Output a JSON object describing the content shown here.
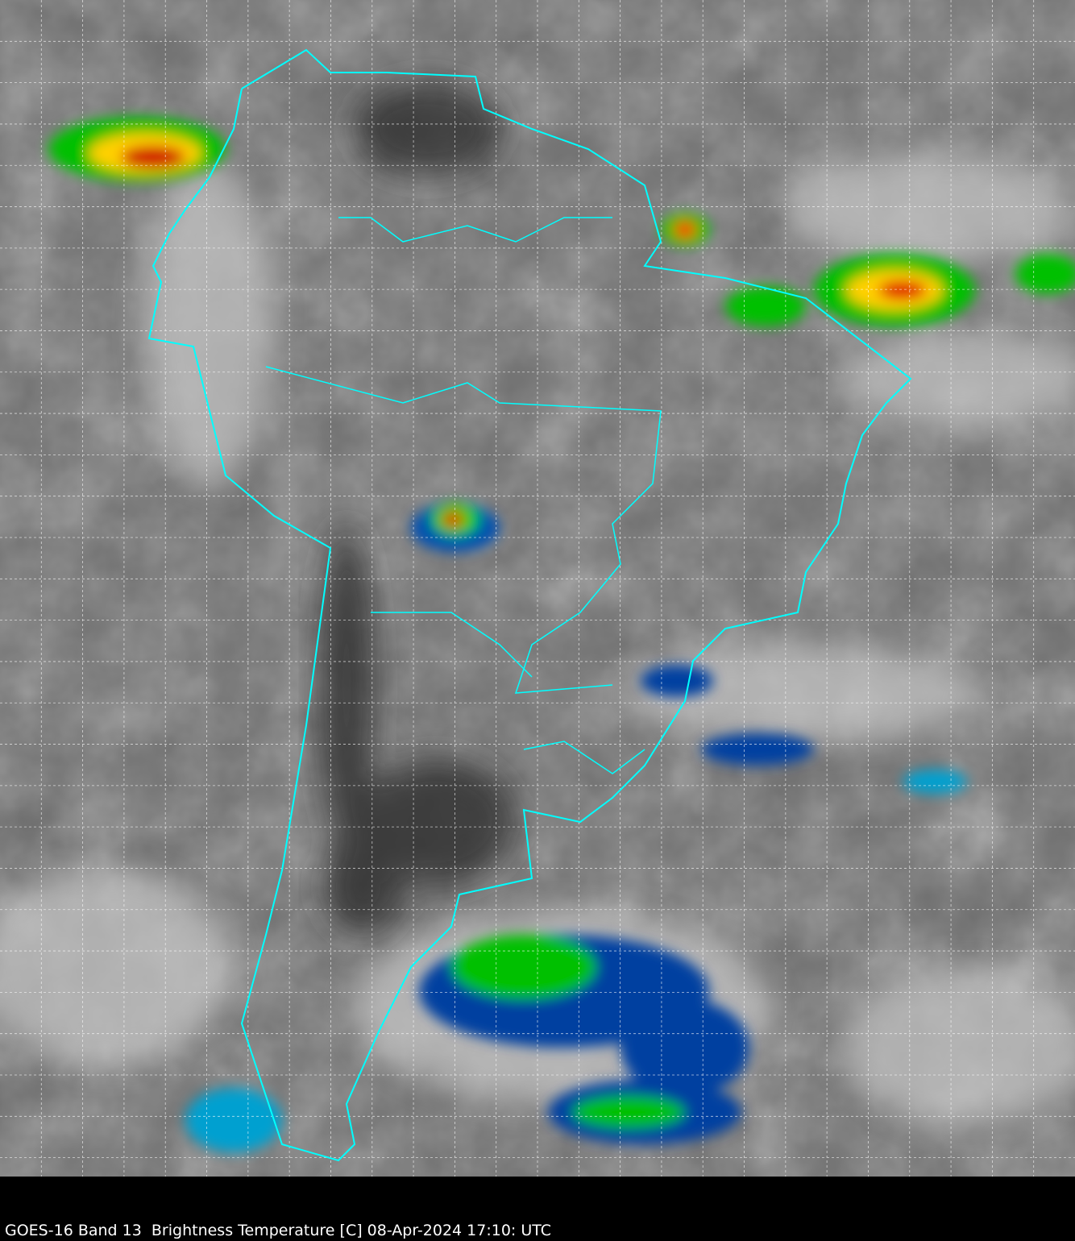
{
  "caption": "GOES-16 Band 13  Brightness Temperature [C] 08-Apr-2024 17:10: UTC",
  "map": {
    "imagery": "satellite infrared brightness temperature",
    "region": "South America",
    "colors": {
      "border": "#00ffff",
      "grid": "#ffffff",
      "background": "#000000",
      "cold_scale": [
        "#ffffff",
        "#00c0e0",
        "#0040a0",
        "#00e000",
        "#ffff00",
        "#ff0000",
        "#600000"
      ]
    },
    "gridlines": "dashed"
  }
}
